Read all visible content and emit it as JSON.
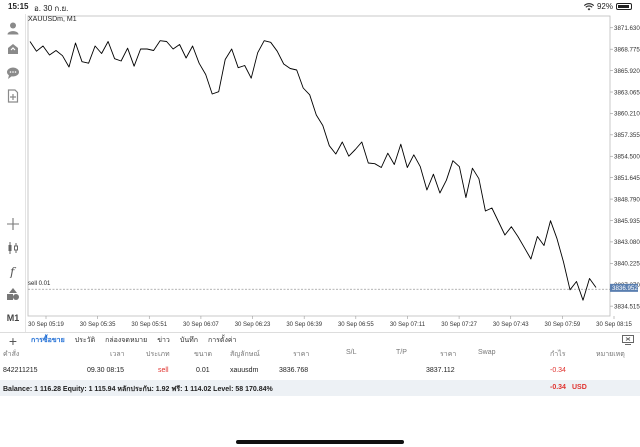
{
  "status_bar": {
    "time": "15:15",
    "date": "อ. 30 ก.ย.",
    "battery": "92%",
    "battery_level": 0.92
  },
  "toolbar": {
    "items": [
      "user-icon",
      "trade-icon",
      "chat-icon",
      "add-document-icon",
      "crosshair-icon",
      "candlestick-icon",
      "function-icon",
      "objects-icon"
    ],
    "timeframe": "M1"
  },
  "chart": {
    "symbol_label": "XAUUSDm, M1",
    "sell_label": "sell 0.01",
    "current_price": "3836.952",
    "price_ticks": [
      "3871.630",
      "3868.775",
      "3865.920",
      "3863.065",
      "3860.210",
      "3857.355",
      "3854.500",
      "3851.645",
      "3848.790",
      "3845.935",
      "3843.080",
      "3840.225",
      "3837.370",
      "3834.515"
    ],
    "time_ticks": [
      "30 Sep 05:19",
      "30 Sep 05:35",
      "30 Sep 05:51",
      "30 Sep 06:07",
      "30 Sep 06:23",
      "30 Sep 06:39",
      "30 Sep 06:55",
      "30 Sep 07:11",
      "30 Sep 07:27",
      "30 Sep 07:43",
      "30 Sep 07:59",
      "30 Sep 08:15"
    ],
    "colors": {
      "line": "#000000",
      "sell_line": "#9a9a9a",
      "price_tag_bg": "#5a7fb0",
      "grid": "#ececec"
    }
  },
  "chart_data": {
    "type": "line",
    "title": "XAUUSDm, M1",
    "x": [
      "05:13",
      "05:15",
      "05:17",
      "05:19",
      "05:21",
      "05:23",
      "05:25",
      "05:27",
      "05:29",
      "05:31",
      "05:33",
      "05:35",
      "05:37",
      "05:39",
      "05:41",
      "05:43",
      "05:45",
      "05:47",
      "05:49",
      "05:51",
      "05:53",
      "05:55",
      "05:57",
      "05:59",
      "06:01",
      "06:03",
      "06:05",
      "06:07",
      "06:09",
      "06:11",
      "06:13",
      "06:15",
      "06:17",
      "06:19",
      "06:21",
      "06:23",
      "06:25",
      "06:27",
      "06:29",
      "06:31",
      "06:33",
      "06:35",
      "06:37",
      "06:39",
      "06:41",
      "06:43",
      "06:45",
      "06:47",
      "06:49",
      "06:51",
      "06:53",
      "06:55",
      "06:57",
      "06:59",
      "07:01",
      "07:03",
      "07:05",
      "07:07",
      "07:09",
      "07:11",
      "07:13",
      "07:15",
      "07:17",
      "07:19",
      "07:21",
      "07:23",
      "07:25",
      "07:27",
      "07:29",
      "07:31",
      "07:33",
      "07:35",
      "07:37",
      "07:39",
      "07:41",
      "07:43",
      "07:45",
      "07:47",
      "07:49",
      "07:51",
      "07:53",
      "07:55",
      "07:57",
      "07:59",
      "08:01",
      "08:03",
      "08:05",
      "08:07"
    ],
    "values": [
      3869.8,
      3868.5,
      3869.2,
      3868.0,
      3868.6,
      3867.9,
      3866.4,
      3869.6,
      3867.1,
      3866.9,
      3869.2,
      3868.2,
      3869.8,
      3867.5,
      3867.2,
      3868.9,
      3866.5,
      3868.8,
      3868.8,
      3868.6,
      3869.9,
      3869.8,
      3868.8,
      3869.4,
      3867.6,
      3869.2,
      3866.9,
      3865.4,
      3862.8,
      3863.1,
      3867.4,
      3868.8,
      3866.3,
      3866.6,
      3864.9,
      3868.3,
      3869.9,
      3869.7,
      3868.5,
      3866.8,
      3866.2,
      3866.0,
      3863.6,
      3862.7,
      3860.0,
      3858.6,
      3855.9,
      3854.8,
      3856.4,
      3854.5,
      3855.4,
      3856.4,
      3853.6,
      3853.5,
      3853.0,
      3854.9,
      3853.4,
      3856.1,
      3853.0,
      3854.7,
      3853.1,
      3850.0,
      3852.1,
      3849.6,
      3851.3,
      3853.9,
      3853.1,
      3849.0,
      3852.9,
      3851.5,
      3847.2,
      3847.6,
      3845.8,
      3844.0,
      3845.1,
      3843.8,
      3842.3,
      3840.8,
      3843.8,
      3842.6,
      3845.9,
      3843.5,
      3840.4,
      3836.7,
      3837.8,
      3835.3,
      3838.2,
      3837.0
    ],
    "ylim": [
      3833.2,
      3873.2
    ],
    "price_ticks": [
      3871.63,
      3868.775,
      3865.92,
      3863.065,
      3860.21,
      3857.355,
      3854.5,
      3851.645,
      3848.79,
      3845.935,
      3843.08,
      3840.225,
      3837.37,
      3834.515
    ],
    "sell_level": 3836.768,
    "current_price": 3836.952,
    "grid": true
  },
  "tabs": {
    "items": [
      "การซื้อขาย",
      "ประวัติ",
      "กล่องจดหมาย",
      "ข่าว",
      "บันทึก",
      "การตั้งค่า"
    ],
    "active_index": 0
  },
  "table": {
    "headers": [
      "คำสั่ง",
      "เวลา",
      "ประเภท",
      "ขนาด",
      "สัญลักษณ์",
      "ราคา",
      "S/L",
      "T/P",
      "ราคา",
      "Swap",
      "กำไร",
      "หมายเหตุ"
    ],
    "rows": [
      [
        "842211215",
        "09.30 08:15",
        "sell",
        "0.01",
        "xauusdm",
        "3836.768",
        "",
        "",
        "3837.112",
        "",
        "-0.34",
        ""
      ]
    ]
  },
  "summary": {
    "text": "Balance: 1 116.28 Equity: 1 115.94 หลักประกัน: 1.92 ฟรี: 1 114.02 Level: 58 170.84%",
    "profit": "-0.34",
    "currency": "USD"
  }
}
